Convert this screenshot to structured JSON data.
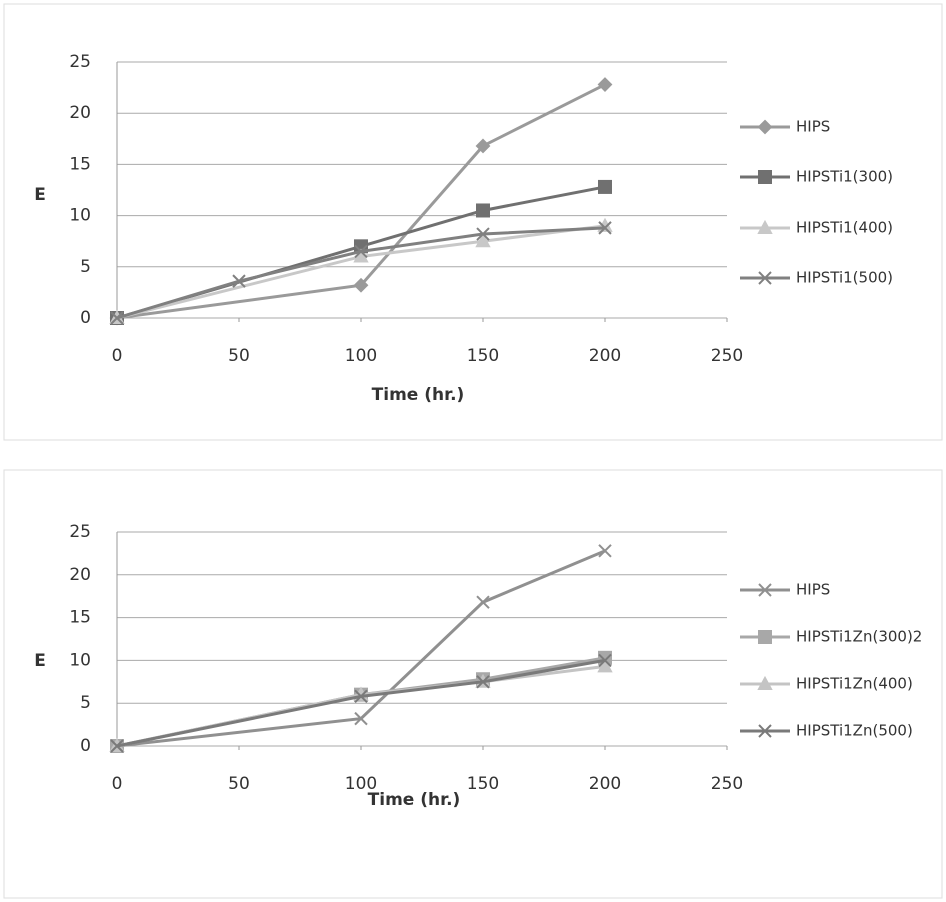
{
  "chart_data": [
    {
      "type": "line",
      "x_label": "Time (hr.)",
      "y_label": "E",
      "xlim": [
        0,
        250
      ],
      "xticks": [
        0,
        50,
        100,
        150,
        200,
        250
      ],
      "ylim": [
        0,
        25
      ],
      "yticks": [
        0,
        5,
        10,
        15,
        20,
        25
      ],
      "grid": true,
      "series": [
        {
          "name": "HIPS",
          "color": "#9a9a9a",
          "marker": "diamond",
          "x": [
            0,
            100,
            150,
            200
          ],
          "values": [
            0,
            3.2,
            16.8,
            22.8
          ]
        },
        {
          "name": "HIPSTi1(300)",
          "color": "#707070",
          "marker": "square",
          "x": [
            0,
            100,
            150,
            200
          ],
          "values": [
            0,
            7,
            10.5,
            12.8
          ]
        },
        {
          "name": "HIPSTi1(400)",
          "color": "#c8c8c8",
          "marker": "triangle",
          "x": [
            0,
            100,
            150,
            200
          ],
          "values": [
            0,
            6,
            7.5,
            9
          ]
        },
        {
          "name": "HIPSTi1(500)",
          "color": "#808080",
          "marker": "x",
          "x": [
            0,
            50,
            100,
            150,
            200
          ],
          "values": [
            0,
            3.6,
            6.5,
            8.2,
            8.8
          ]
        }
      ]
    },
    {
      "type": "line",
      "x_label": "Time (hr.)",
      "y_label": "E",
      "xlim": [
        0,
        250
      ],
      "xticks": [
        0,
        50,
        100,
        150,
        200,
        250
      ],
      "ylim": [
        0,
        25
      ],
      "yticks": [
        0,
        5,
        10,
        15,
        20,
        25
      ],
      "grid": true,
      "series": [
        {
          "name": "HIPS",
          "color": "#909090",
          "marker": "x",
          "x": [
            0,
            100,
            150,
            200
          ],
          "values": [
            0,
            3.2,
            16.8,
            22.8
          ]
        },
        {
          "name": "HIPSTi1Zn(300)2",
          "color": "#a8a8a8",
          "marker": "square",
          "x": [
            0,
            100,
            150,
            200
          ],
          "values": [
            0,
            6,
            7.8,
            10.3
          ]
        },
        {
          "name": "HIPSTi1Zn(400)",
          "color": "#c4c4c4",
          "marker": "triangle",
          "x": [
            0,
            100,
            150,
            200
          ],
          "values": [
            0,
            6,
            7.5,
            9.3
          ]
        },
        {
          "name": "HIPSTi1Zn(500)",
          "color": "#7a7a7a",
          "marker": "x",
          "x": [
            0,
            100,
            150,
            200
          ],
          "values": [
            0,
            5.8,
            7.5,
            10
          ]
        }
      ]
    }
  ]
}
